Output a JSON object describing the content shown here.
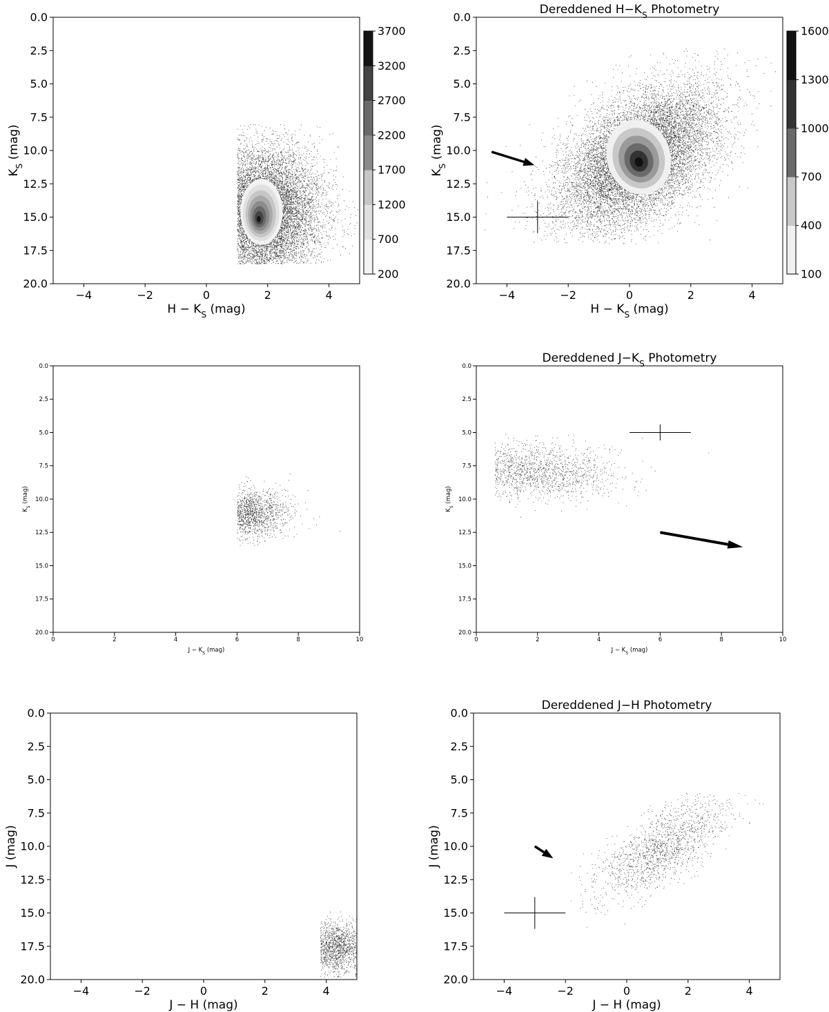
{
  "chart_data": [
    {
      "type": "scatter",
      "title": "",
      "xlabel": "H − K",
      "xlabel_sub": "S",
      "xlabel_unit": " (mag)",
      "ylabel": "K",
      "ylabel_sub": "S",
      "ylabel_unit": " (mag)",
      "xlim": [
        -5,
        5
      ],
      "ylim": [
        20,
        0
      ],
      "xticks": [
        "−4",
        "−2",
        "0",
        "2",
        "4"
      ],
      "xtick_values": [
        -4,
        -2,
        0,
        2,
        4
      ],
      "yticks": [
        "0.0",
        "2.5",
        "5.0",
        "7.5",
        "10.0",
        "12.5",
        "15.0",
        "17.5",
        "20.0"
      ],
      "ytick_values": [
        0,
        2.5,
        5,
        7.5,
        10,
        12.5,
        15,
        17.5,
        20
      ],
      "density": {
        "center": [
          1.8,
          14.6
        ],
        "core_sigma": [
          0.6,
          2.6
        ],
        "cloud_sigma": [
          0.95,
          2.6
        ],
        "x_cut": 1.0,
        "y_range": [
          8,
          18.5
        ],
        "n_points": 9000,
        "tilt": 0
      },
      "colorbar": {
        "levels": [
          "200",
          "700",
          "1200",
          "1700",
          "2200",
          "2700",
          "3200",
          "3700"
        ],
        "colors": [
          "#f3f3f3",
          "#e0e0e0",
          "#c6c6c6",
          "#a9a9a9",
          "#8b8b8b",
          "#6a6a6a",
          "#444444",
          "#141414"
        ]
      },
      "arrow": null,
      "errorbar": null
    },
    {
      "type": "scatter",
      "title": "Dereddened H−K",
      "title_sub": "S",
      "title_tail": " Photometry",
      "xlabel": "H − K",
      "xlabel_sub": "S",
      "xlabel_unit": " (mag)",
      "ylabel": "K",
      "ylabel_sub": "S",
      "ylabel_unit": " (mag)",
      "xlim": [
        -5,
        5
      ],
      "ylim": [
        20,
        0
      ],
      "xticks": [
        "−4",
        "−2",
        "0",
        "2",
        "4"
      ],
      "xtick_values": [
        -4,
        -2,
        0,
        2,
        4
      ],
      "yticks": [
        "0.0",
        "2.5",
        "5.0",
        "7.5",
        "10.0",
        "12.5",
        "15.0",
        "17.5",
        "20.0"
      ],
      "ytick_values": [
        0,
        2.5,
        5,
        7.5,
        10,
        12.5,
        15,
        17.5,
        20
      ],
      "density": {
        "center": [
          0.3,
          10.5
        ],
        "core_sigma": [
          0.9,
          3.0
        ],
        "cloud_sigma": [
          1.1,
          2.9
        ],
        "x_cut": null,
        "y_range": [
          2,
          17
        ],
        "n_points": 12000,
        "tilt": -0.45
      },
      "colorbar": {
        "levels": [
          "100",
          "400",
          "700",
          "1000",
          "1300",
          "1600"
        ],
        "colors": [
          "#f0f0f0",
          "#c8c8c8",
          "#9a9a9a",
          "#6a6a6a",
          "#333333",
          "#111111"
        ]
      },
      "arrow": {
        "from": [
          -4.5,
          10.1
        ],
        "to": [
          -3.1,
          11.1
        ]
      },
      "errorbar": {
        "center": [
          -3,
          15
        ],
        "xerr": 1.0,
        "yerr": 1.2
      }
    },
    {
      "type": "scatter",
      "title": "",
      "xlabel": "J − K",
      "xlabel_sub": "S",
      "xlabel_unit": " (mag)",
      "ylabel": "K",
      "ylabel_sub": "S",
      "ylabel_unit": " (mag)",
      "xlim": [
        0,
        10
      ],
      "ylim": [
        20,
        0
      ],
      "xticks": [
        "0",
        "2",
        "4",
        "6",
        "8",
        "10"
      ],
      "xtick_values": [
        0,
        2,
        4,
        6,
        8,
        10
      ],
      "yticks": [
        "0.0",
        "2.5",
        "5.0",
        "7.5",
        "10.0",
        "12.5",
        "15.0",
        "17.5",
        "20.0"
      ],
      "ytick_values": [
        0,
        2.5,
        5,
        7.5,
        10,
        12.5,
        15,
        17.5,
        20
      ],
      "density": {
        "center": [
          6.3,
          11.0
        ],
        "core_sigma": [
          0.5,
          1.1
        ],
        "cloud_sigma": [
          0.7,
          1.0
        ],
        "x_cut": 6.0,
        "y_range": [
          8,
          13.5
        ],
        "n_points": 1200,
        "tilt": 0
      },
      "colorbar": null,
      "arrow": null,
      "errorbar": null
    },
    {
      "type": "scatter",
      "title": "Dereddened J−K",
      "title_sub": "S",
      "title_tail": " Photometry",
      "xlabel": "J − K",
      "xlabel_sub": "S",
      "xlabel_unit": " (mag)",
      "ylabel": "K",
      "ylabel_sub": "S",
      "ylabel_unit": " (mag)",
      "xlim": [
        0,
        10
      ],
      "ylim": [
        20,
        0
      ],
      "xticks": [
        "0",
        "2",
        "4",
        "6",
        "8",
        "10"
      ],
      "xtick_values": [
        0,
        2,
        4,
        6,
        8,
        10
      ],
      "yticks": [
        "0.0",
        "2.5",
        "5.0",
        "7.5",
        "10.0",
        "12.5",
        "15.0",
        "17.5",
        "20.0"
      ],
      "ytick_values": [
        0,
        2.5,
        5,
        7.5,
        10,
        12.5,
        15,
        17.5,
        20
      ],
      "density": {
        "center": [
          1.6,
          7.9
        ],
        "core_sigma": [
          1.0,
          0.9
        ],
        "cloud_sigma": [
          1.5,
          1.2
        ],
        "x_cut": 0.6,
        "y_range": [
          5,
          11.5
        ],
        "n_points": 1300,
        "tilt": 0.35
      },
      "colorbar": null,
      "arrow": {
        "from": [
          6.0,
          12.5
        ],
        "to": [
          8.7,
          13.6
        ]
      },
      "errorbar": {
        "center": [
          6,
          5
        ],
        "xerr": 1.0,
        "yerr": 0.6
      }
    },
    {
      "type": "scatter",
      "title": "",
      "xlabel": "J − H",
      "xlabel_sub": "",
      "xlabel_unit": " (mag)",
      "ylabel": "J",
      "ylabel_sub": "",
      "ylabel_unit": " (mag)",
      "xlim": [
        -5,
        5
      ],
      "ylim": [
        20,
        0
      ],
      "xticks": [
        "−4",
        "−2",
        "0",
        "2",
        "4"
      ],
      "xtick_values": [
        -4,
        -2,
        0,
        2,
        4
      ],
      "yticks": [
        "0.0",
        "2.5",
        "5.0",
        "7.5",
        "10.0",
        "12.5",
        "15.0",
        "17.5",
        "20.0"
      ],
      "ytick_values": [
        0,
        2.5,
        5,
        7.5,
        10,
        12.5,
        15,
        17.5,
        20
      ],
      "density": {
        "center": [
          4.3,
          17.6
        ],
        "core_sigma": [
          0.35,
          1.0
        ],
        "cloud_sigma": [
          0.5,
          1.1
        ],
        "x_cut": 3.8,
        "y_range": [
          14.5,
          19.8
        ],
        "n_points": 1300,
        "tilt": 0
      },
      "colorbar": null,
      "arrow": null,
      "errorbar": null
    },
    {
      "type": "scatter",
      "title": "Dereddened J−H Photometry",
      "title_sub": "",
      "title_tail": "",
      "xlabel": "J − H",
      "xlabel_sub": "",
      "xlabel_unit": " (mag)",
      "ylabel": "J",
      "ylabel_sub": "",
      "ylabel_unit": " (mag)",
      "xlim": [
        -5,
        5
      ],
      "ylim": [
        20,
        0
      ],
      "xticks": [
        "−4",
        "−2",
        "0",
        "2",
        "4"
      ],
      "xtick_values": [
        -4,
        -2,
        0,
        2,
        4
      ],
      "yticks": [
        "0.0",
        "2.5",
        "5.0",
        "7.5",
        "10.0",
        "12.5",
        "15.0",
        "17.5",
        "20.0"
      ],
      "ytick_values": [
        0,
        2.5,
        5,
        7.5,
        10,
        12.5,
        15,
        17.5,
        20
      ],
      "density": {
        "center": [
          1.1,
          10.2
        ],
        "core_sigma": [
          0.55,
          1.7
        ],
        "cloud_sigma": [
          0.75,
          2.0
        ],
        "x_cut": null,
        "y_range": [
          6,
          18
        ],
        "n_points": 1500,
        "tilt": -0.8
      },
      "colorbar": null,
      "arrow": {
        "from": [
          -3.0,
          10.0
        ],
        "to": [
          -2.4,
          10.9
        ]
      },
      "errorbar": {
        "center": [
          -3,
          15
        ],
        "xerr": 1.0,
        "yerr": 1.2
      }
    }
  ]
}
